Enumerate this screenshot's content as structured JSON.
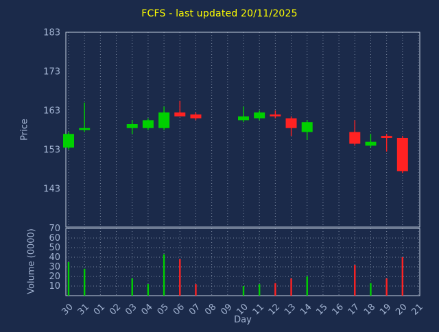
{
  "title": "FCFS - last updated 20/11/2025",
  "axes": {
    "price_label": "Price",
    "volume_label": "Volume (0000)",
    "x_label": "Day"
  },
  "colors": {
    "background": "#1b2a4a",
    "title": "#ffff00",
    "axis_text": "#a3b4d2",
    "frame": "#c3cede",
    "grid": "#8b99b0",
    "up": "#00d000",
    "down": "#ff2222"
  },
  "chart_data": {
    "type": "candlestick",
    "title": "FCFS - last updated 20/11/2025",
    "xlabel": "Day",
    "ylabel": "Price",
    "ylabel2": "Volume (0000)",
    "x_tick_labels": [
      "30",
      "31",
      "01",
      "02",
      "03",
      "04",
      "05",
      "06",
      "07",
      "08",
      "09",
      "10",
      "11",
      "12",
      "13",
      "14",
      "15",
      "16",
      "17",
      "18",
      "19",
      "20",
      "21"
    ],
    "price_ticks": [
      183,
      173,
      163,
      153,
      143
    ],
    "volume_ticks": [
      70,
      60,
      50,
      40,
      30,
      20,
      10
    ],
    "price_ylim": [
      133.2,
      183
    ],
    "volume_ylim": [
      0,
      70
    ],
    "grid": "vertical dotted in price panel; vertical and horizontal dotted in volume panel",
    "candles": [
      {
        "day": "30",
        "open": 153.5,
        "high": 157.5,
        "low": 153.0,
        "close": 157.0,
        "volume": 35
      },
      {
        "day": "31",
        "open": 158.0,
        "high": 165.0,
        "low": 157.5,
        "close": 158.5,
        "volume": 28
      },
      {
        "day": "03",
        "open": 158.5,
        "high": 160.5,
        "low": 157.0,
        "close": 159.5,
        "volume": 18
      },
      {
        "day": "04",
        "open": 158.5,
        "high": 161.0,
        "low": 158.0,
        "close": 160.5,
        "volume": 12
      },
      {
        "day": "05",
        "open": 158.5,
        "high": 164.0,
        "low": 158.0,
        "close": 162.5,
        "volume": 43
      },
      {
        "day": "06",
        "open": 162.5,
        "high": 165.5,
        "low": 161.5,
        "close": 161.5,
        "volume": 38
      },
      {
        "day": "07",
        "open": 162.0,
        "high": 162.5,
        "low": 160.5,
        "close": 161.0,
        "volume": 12
      },
      {
        "day": "10",
        "open": 160.5,
        "high": 164.0,
        "low": 160.0,
        "close": 161.5,
        "volume": 10
      },
      {
        "day": "11",
        "open": 161.0,
        "high": 163.0,
        "low": 160.5,
        "close": 162.5,
        "volume": 12
      },
      {
        "day": "12",
        "open": 162.0,
        "high": 163.0,
        "low": 161.0,
        "close": 161.5,
        "volume": 13
      },
      {
        "day": "13",
        "open": 161.0,
        "high": 161.5,
        "low": 156.5,
        "close": 158.5,
        "volume": 18
      },
      {
        "day": "14",
        "open": 157.5,
        "high": 160.5,
        "low": 155.5,
        "close": 160.0,
        "volume": 20
      },
      {
        "day": "17",
        "open": 157.5,
        "high": 160.5,
        "low": 154.0,
        "close": 154.5,
        "volume": 32
      },
      {
        "day": "18",
        "open": 154.0,
        "high": 157.0,
        "low": 153.5,
        "close": 155.0,
        "volume": 13
      },
      {
        "day": "19",
        "open": 156.5,
        "high": 157.0,
        "low": 152.5,
        "close": 156.0,
        "volume": 18
      },
      {
        "day": "20",
        "open": 156.0,
        "high": 156.5,
        "low": 147.0,
        "close": 147.5,
        "volume": 40
      }
    ]
  }
}
